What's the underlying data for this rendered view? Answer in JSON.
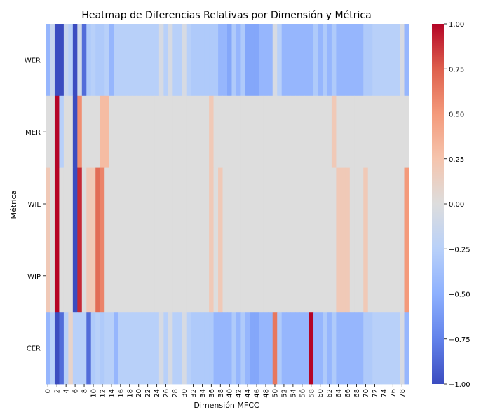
{
  "chart_data": {
    "type": "heatmap",
    "title": "Heatmap de Diferencias Relativas por Dimensión y Métrica",
    "xlabel": "Dimensión MFCC",
    "ylabel": "Métrica",
    "rows": [
      "WER",
      "MER",
      "WIL",
      "WIP",
      "CER"
    ],
    "x_tick_labels": [
      "0",
      "2",
      "4",
      "6",
      "8",
      "10",
      "12",
      "14",
      "16",
      "18",
      "20",
      "22",
      "24",
      "26",
      "28",
      "30",
      "32",
      "34",
      "36",
      "38",
      "40",
      "42",
      "44",
      "46",
      "48",
      "50",
      "52",
      "54",
      "56",
      "58",
      "60",
      "62",
      "64",
      "66",
      "68",
      "70",
      "72",
      "74",
      "76",
      "78"
    ],
    "colorbar": {
      "min": -1.0,
      "max": 1.0,
      "ticks": [
        "1.00",
        "0.75",
        "0.50",
        "0.25",
        "0.00",
        "−0.25",
        "−0.50",
        "−0.75",
        "−1.00"
      ],
      "colormap": "coolwarm"
    },
    "values": [
      [
        -0.45,
        -0.15,
        -1.0,
        -1.0,
        -0.15,
        -0.25,
        -1.0,
        -0.1,
        -0.85,
        -0.3,
        -0.25,
        -0.3,
        -0.3,
        -0.25,
        -0.45,
        -0.25,
        -0.25,
        -0.25,
        -0.25,
        -0.25,
        -0.25,
        -0.25,
        -0.25,
        -0.25,
        -0.25,
        -0.05,
        -0.25,
        -0.05,
        -0.25,
        -0.25,
        -0.05,
        -0.25,
        -0.3,
        -0.3,
        -0.3,
        -0.3,
        -0.3,
        -0.3,
        -0.45,
        -0.45,
        -0.55,
        -0.3,
        -0.45,
        -0.3,
        -0.55,
        -0.55,
        -0.55,
        -0.45,
        -0.45,
        -0.45,
        -0.05,
        -0.25,
        -0.45,
        -0.45,
        -0.45,
        -0.45,
        -0.45,
        -0.45,
        -0.45,
        -0.3,
        -0.45,
        -0.3,
        -0.45,
        -0.3,
        -0.45,
        -0.45,
        -0.45,
        -0.45,
        -0.45,
        -0.45,
        -0.3,
        -0.3,
        -0.25,
        -0.25,
        -0.25,
        -0.25,
        -0.25,
        -0.25,
        -0.05,
        -0.45
      ],
      [
        0.0,
        0.0,
        1.0,
        -0.25,
        0.0,
        0.0,
        -1.0,
        0.55,
        0.0,
        0.0,
        0.0,
        0.0,
        0.3,
        0.3,
        0.0,
        0.0,
        0.0,
        0.0,
        0.0,
        0.0,
        0.0,
        0.0,
        0.0,
        0.0,
        0.0,
        0.0,
        0.0,
        0.0,
        0.0,
        0.0,
        0.0,
        0.0,
        0.0,
        0.0,
        0.0,
        0.0,
        0.2,
        0.0,
        0.0,
        0.0,
        0.0,
        0.0,
        0.0,
        0.0,
        0.0,
        0.0,
        0.0,
        0.0,
        0.0,
        0.0,
        0.0,
        0.0,
        0.0,
        0.0,
        0.0,
        0.0,
        0.0,
        0.0,
        0.0,
        0.0,
        0.0,
        0.0,
        0.0,
        0.2,
        0.0,
        0.0,
        0.0,
        0.0,
        0.0,
        0.0,
        0.0,
        0.0,
        0.0,
        0.0,
        0.0,
        0.0,
        0.0,
        0.0,
        0.0,
        0.0
      ],
      [
        0.2,
        0.0,
        1.0,
        0.0,
        0.0,
        0.0,
        -1.0,
        0.9,
        0.0,
        0.2,
        0.2,
        0.7,
        0.6,
        0.0,
        0.0,
        0.0,
        0.0,
        0.0,
        0.0,
        0.0,
        0.0,
        0.0,
        0.0,
        0.0,
        0.0,
        0.0,
        0.0,
        0.0,
        0.0,
        0.0,
        0.0,
        0.0,
        0.0,
        0.0,
        0.0,
        0.0,
        0.2,
        0.0,
        0.2,
        0.0,
        0.0,
        0.0,
        0.0,
        0.0,
        0.0,
        0.0,
        0.0,
        0.0,
        0.0,
        0.0,
        0.0,
        0.0,
        0.0,
        0.0,
        0.0,
        0.0,
        0.0,
        0.0,
        0.0,
        0.0,
        0.0,
        0.0,
        0.0,
        0.0,
        0.2,
        0.2,
        0.2,
        0.0,
        0.0,
        0.0,
        0.2,
        0.0,
        0.0,
        0.0,
        0.0,
        0.0,
        0.0,
        0.0,
        0.0,
        0.5
      ],
      [
        0.2,
        0.0,
        1.0,
        0.0,
        0.0,
        0.0,
        -1.0,
        0.9,
        0.0,
        0.2,
        0.2,
        0.7,
        0.6,
        0.0,
        0.0,
        0.0,
        0.0,
        0.0,
        0.0,
        0.0,
        0.0,
        0.0,
        0.0,
        0.0,
        0.0,
        0.0,
        0.0,
        0.0,
        0.0,
        0.0,
        0.0,
        0.0,
        0.0,
        0.0,
        0.0,
        0.0,
        0.2,
        0.0,
        0.2,
        0.0,
        0.0,
        0.0,
        0.0,
        0.0,
        0.0,
        0.0,
        0.0,
        0.0,
        0.0,
        0.0,
        0.0,
        0.0,
        0.0,
        0.0,
        0.0,
        0.0,
        0.0,
        0.0,
        0.0,
        0.0,
        0.0,
        0.0,
        0.0,
        0.0,
        0.2,
        0.2,
        0.2,
        0.0,
        0.0,
        0.0,
        0.2,
        0.0,
        0.0,
        0.0,
        0.0,
        0.0,
        0.0,
        0.0,
        0.0,
        0.5
      ],
      [
        -0.45,
        -0.25,
        -1.0,
        -0.85,
        -0.25,
        0.1,
        -0.25,
        -0.25,
        -0.25,
        -0.85,
        -0.3,
        -0.25,
        -0.3,
        -0.25,
        -0.25,
        -0.45,
        -0.25,
        -0.25,
        -0.25,
        -0.25,
        -0.25,
        -0.25,
        -0.25,
        -0.25,
        -0.25,
        -0.05,
        -0.25,
        -0.05,
        -0.25,
        -0.25,
        -0.05,
        -0.25,
        -0.3,
        -0.3,
        -0.3,
        -0.3,
        -0.3,
        -0.45,
        -0.45,
        -0.45,
        -0.45,
        -0.3,
        -0.45,
        -0.3,
        -0.45,
        -0.55,
        -0.55,
        -0.45,
        -0.45,
        -0.45,
        0.65,
        -0.3,
        -0.45,
        -0.45,
        -0.45,
        -0.45,
        -0.45,
        -0.45,
        1.0,
        -0.45,
        -0.45,
        -0.3,
        -0.45,
        -0.3,
        -0.45,
        -0.45,
        -0.45,
        -0.45,
        -0.45,
        -0.45,
        -0.3,
        -0.3,
        -0.25,
        -0.25,
        -0.25,
        -0.25,
        -0.25,
        -0.25,
        -0.05,
        -0.45
      ]
    ]
  }
}
